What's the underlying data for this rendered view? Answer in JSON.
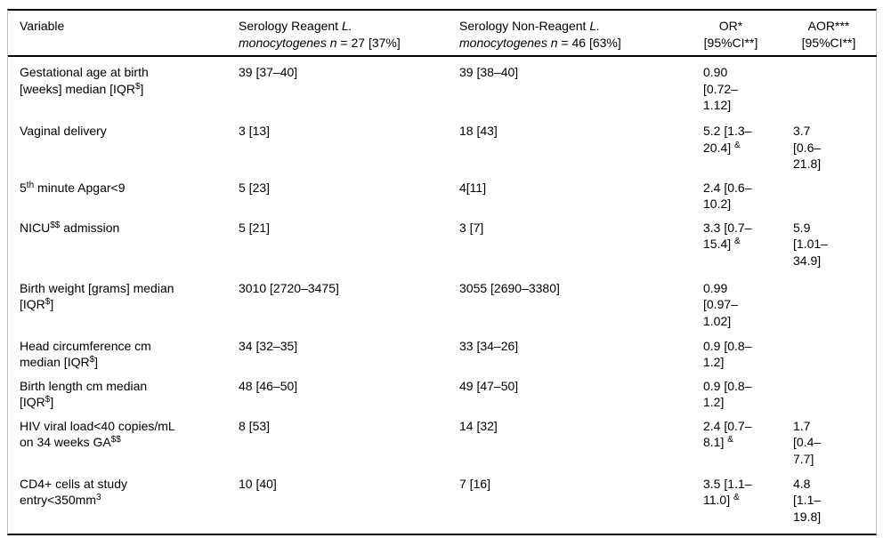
{
  "colors": {
    "background": "#ffffff",
    "text": "#000000",
    "rule_dark": "#000000",
    "rule_light": "#bfbfbf"
  },
  "table": {
    "columns": [
      {
        "id": "variable",
        "label_html": "Variable"
      },
      {
        "id": "reagent",
        "label_html": "Serology Reagent <i>L.</i><br><i>monocytogenes n</i> = 27 [37%]"
      },
      {
        "id": "nonreagent",
        "label_html": "Serology Non-Reagent <i>L.</i><br><i>monocytogenes n</i> = 46 [63%]"
      },
      {
        "id": "or",
        "label_html": "OR*<br>[95%CI**]"
      },
      {
        "id": "aor",
        "label_html": "AOR***<br>[95%CI**]"
      }
    ],
    "rows": [
      {
        "variable_html": "Gestational age at birth<br>[weeks] median [IQR<sup>$</sup>]",
        "reagent_html": "39 [37–40]",
        "nonreagent_html": "39 [38–40]",
        "or_html": "0.90<br>[0.72–<br>1.12]",
        "aor_html": ""
      },
      {
        "variable_html": "Vaginal delivery",
        "reagent_html": "3 [13]",
        "nonreagent_html": "18 [43]",
        "or_html": "5.2 [1.3–<br>20.4] <sup>&amp;</sup>",
        "aor_html": "3.7<br>[0.6–<br>21.8]"
      },
      {
        "variable_html": "5<sup>th</sup> minute Apgar&lt;9",
        "reagent_html": "5 [23]",
        "nonreagent_html": "4[11]",
        "or_html": "2.4 [0.6–<br>10.2]",
        "aor_html": ""
      },
      {
        "variable_html": "NICU<sup>$$</sup> admission",
        "reagent_html": "5 [21]",
        "nonreagent_html": "3 [7]",
        "or_html": "3.3 [0.7–<br>15.4] <sup>&amp;</sup>",
        "aor_html": "5.9<br>[1.01–<br>34.9]"
      },
      {
        "variable_html": "Birth weight [grams] median<br>[IQR<sup>$</sup>]",
        "reagent_html": "3010 [2720–3475]",
        "nonreagent_html": "3055 [2690–3380]",
        "or_html": "0.99<br>[0.97–<br>1.02]",
        "aor_html": ""
      },
      {
        "variable_html": "Head circumference cm<br>median [IQR<sup>$</sup>]",
        "reagent_html": "34 [32–35]",
        "nonreagent_html": "33 [34–26]",
        "or_html": "0.9 [0.8–<br>1.2]",
        "aor_html": ""
      },
      {
        "variable_html": "Birth length cm median<br>[IQR<sup>$</sup>]",
        "reagent_html": "48 [46–50]",
        "nonreagent_html": "49 [47–50]",
        "or_html": "0.9 [0.8–<br>1.2]",
        "aor_html": ""
      },
      {
        "variable_html": "HIV viral load&lt;40 copies/mL<br>on 34 weeks GA<sup>$$</sup>",
        "reagent_html": "8 [53]",
        "nonreagent_html": "14 [32]",
        "or_html": "2.4 [0.7–<br>8.1] <sup>&amp;</sup>",
        "aor_html": "1.7<br>[0.4–<br>7.7]"
      },
      {
        "variable_html": "CD4+ cells at study<br>entry&lt;350mm<sup>3</sup>",
        "reagent_html": "10 [40]",
        "nonreagent_html": "7 [16]",
        "or_html": "3.5 [1.1–<br>11.0] <sup>&amp;</sup>",
        "aor_html": "4.8<br>[1.1–<br>19.8]"
      }
    ]
  }
}
